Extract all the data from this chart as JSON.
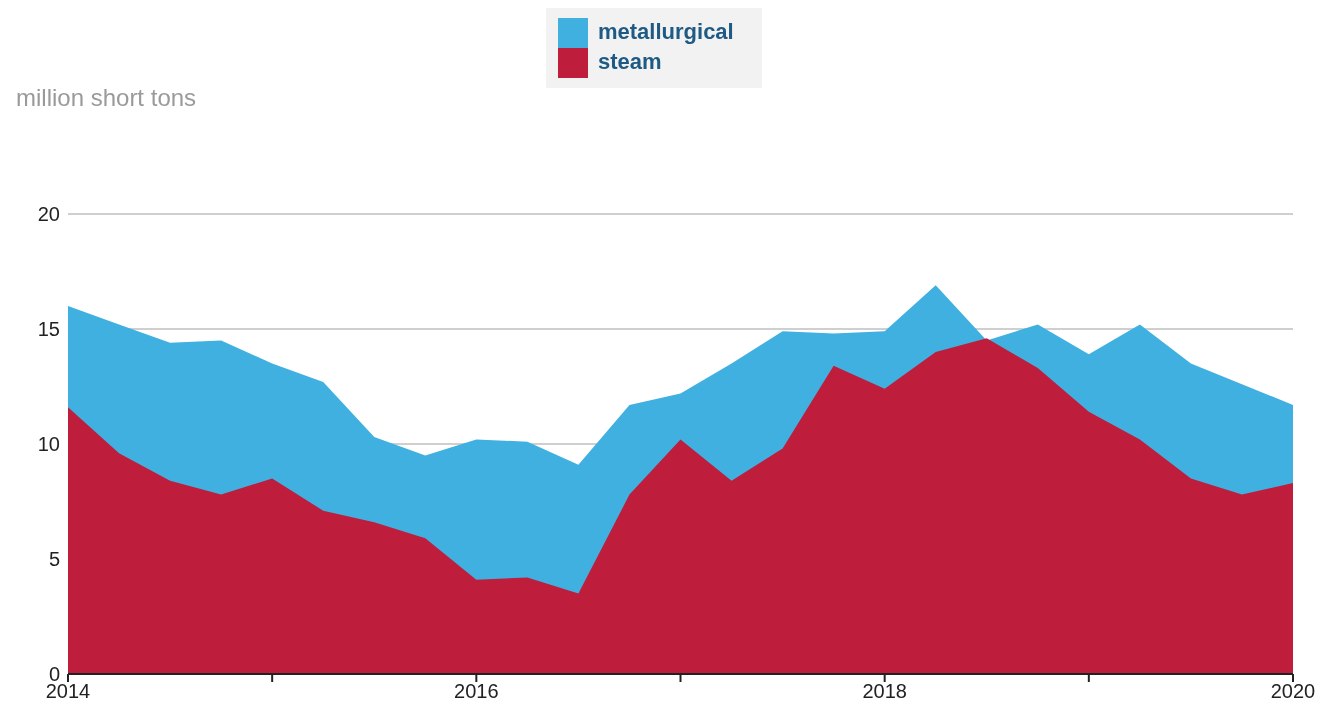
{
  "chart_data": {
    "type": "area",
    "ylabel": "million short tons",
    "x": [
      "2014-01",
      "2014-04",
      "2014-07",
      "2014-10",
      "2015-01",
      "2015-04",
      "2015-07",
      "2015-10",
      "2016-01",
      "2016-04",
      "2016-07",
      "2016-10",
      "2017-01",
      "2017-04",
      "2017-07",
      "2017-10",
      "2018-01",
      "2018-04",
      "2018-07",
      "2018-10",
      "2019-01",
      "2019-04",
      "2019-07",
      "2019-10",
      "2020-01"
    ],
    "series": [
      {
        "name": "metallurgical",
        "color": "#3fb0e0",
        "values": [
          16.0,
          15.2,
          14.4,
          14.5,
          13.5,
          12.7,
          10.3,
          9.5,
          10.2,
          10.1,
          9.1,
          11.7,
          12.2,
          13.5,
          14.9,
          14.8,
          14.9,
          16.9,
          14.5,
          15.2,
          13.9,
          15.2,
          13.5,
          12.6,
          11.7
        ]
      },
      {
        "name": "steam",
        "color": "#be1e3c",
        "values": [
          11.6,
          9.6,
          8.4,
          7.8,
          8.5,
          7.1,
          6.6,
          5.9,
          4.1,
          4.2,
          3.5,
          7.8,
          10.2,
          8.4,
          9.8,
          13.4,
          12.4,
          14.0,
          14.6,
          13.3,
          11.4,
          10.2,
          8.5,
          7.8,
          8.3
        ]
      }
    ],
    "xlim": [
      "2014",
      "2020"
    ],
    "xticks": [
      "2014",
      {
        "value": "2015",
        "label": null
      },
      "2016",
      {
        "value": "2017",
        "label": null
      },
      "2018",
      {
        "value": "2019",
        "label": null
      },
      "2020"
    ],
    "ylim": [
      0,
      20
    ],
    "yticks": [
      0,
      5,
      10,
      15,
      20
    ],
    "grid": "y",
    "legend": "top"
  }
}
